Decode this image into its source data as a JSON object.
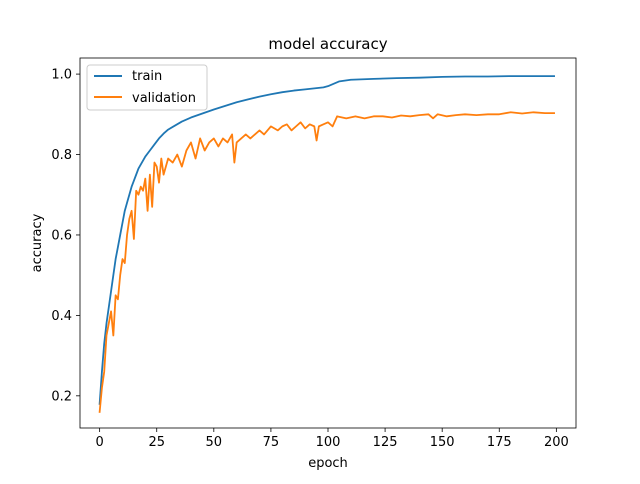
{
  "chart_data": {
    "type": "line",
    "title": "model accuracy",
    "xlabel": "epoch",
    "ylabel": "accuracy",
    "xlim": [
      -8.6,
      208.6
    ],
    "ylim": [
      0.12,
      1.04
    ],
    "xticks": [
      0,
      25,
      50,
      75,
      100,
      125,
      150,
      175,
      200
    ],
    "yticks": [
      0.2,
      0.4,
      0.6,
      0.8,
      1.0
    ],
    "xtick_labels": [
      "0",
      "25",
      "50",
      "75",
      "100",
      "125",
      "150",
      "175",
      "200"
    ],
    "ytick_labels": [
      "0.2",
      "0.4",
      "0.6",
      "0.8",
      "1.0"
    ],
    "legend_position": "upper-left",
    "series": [
      {
        "name": "train",
        "color": "#1f77b4",
        "x": [
          0,
          1,
          2,
          3,
          4,
          5,
          6,
          7,
          8,
          9,
          10,
          11,
          12,
          13,
          14,
          15,
          16,
          17,
          18,
          19,
          20,
          22,
          24,
          26,
          28,
          30,
          33,
          36,
          40,
          45,
          50,
          55,
          60,
          65,
          70,
          75,
          80,
          85,
          90,
          95,
          98,
          100,
          105,
          110,
          120,
          130,
          140,
          150,
          160,
          170,
          180,
          190,
          199
        ],
        "values": [
          0.18,
          0.26,
          0.33,
          0.38,
          0.42,
          0.46,
          0.5,
          0.54,
          0.57,
          0.6,
          0.63,
          0.66,
          0.68,
          0.7,
          0.72,
          0.735,
          0.75,
          0.765,
          0.775,
          0.785,
          0.795,
          0.81,
          0.825,
          0.84,
          0.852,
          0.862,
          0.872,
          0.882,
          0.892,
          0.902,
          0.912,
          0.921,
          0.93,
          0.937,
          0.944,
          0.95,
          0.955,
          0.959,
          0.962,
          0.965,
          0.967,
          0.97,
          0.982,
          0.986,
          0.988,
          0.99,
          0.991,
          0.993,
          0.994,
          0.994,
          0.995,
          0.995,
          0.995
        ]
      },
      {
        "name": "validation",
        "color": "#ff7f0e",
        "x": [
          0,
          1,
          2,
          3,
          4,
          5,
          6,
          7,
          8,
          9,
          10,
          11,
          12,
          13,
          14,
          15,
          16,
          17,
          18,
          19,
          20,
          21,
          22,
          23,
          24,
          25,
          26,
          27,
          28,
          30,
          32,
          34,
          36,
          38,
          40,
          42,
          44,
          46,
          48,
          50,
          52,
          54,
          56,
          58,
          59,
          60,
          62,
          64,
          66,
          68,
          70,
          72,
          75,
          78,
          80,
          82,
          84,
          86,
          88,
          90,
          92,
          94,
          95,
          96,
          98,
          100,
          102,
          104,
          108,
          112,
          116,
          120,
          124,
          128,
          132,
          136,
          140,
          144,
          146,
          148,
          152,
          156,
          160,
          165,
          170,
          175,
          180,
          185,
          190,
          195,
          199
        ],
        "values": [
          0.16,
          0.22,
          0.26,
          0.35,
          0.38,
          0.41,
          0.35,
          0.45,
          0.44,
          0.5,
          0.54,
          0.53,
          0.6,
          0.64,
          0.66,
          0.59,
          0.71,
          0.7,
          0.72,
          0.71,
          0.74,
          0.66,
          0.75,
          0.67,
          0.78,
          0.77,
          0.73,
          0.79,
          0.75,
          0.79,
          0.78,
          0.8,
          0.77,
          0.81,
          0.83,
          0.79,
          0.84,
          0.81,
          0.83,
          0.84,
          0.82,
          0.84,
          0.83,
          0.85,
          0.78,
          0.83,
          0.84,
          0.85,
          0.84,
          0.85,
          0.86,
          0.85,
          0.87,
          0.86,
          0.87,
          0.875,
          0.86,
          0.87,
          0.88,
          0.865,
          0.875,
          0.87,
          0.835,
          0.87,
          0.875,
          0.88,
          0.87,
          0.895,
          0.89,
          0.895,
          0.89,
          0.895,
          0.895,
          0.892,
          0.897,
          0.895,
          0.898,
          0.9,
          0.89,
          0.9,
          0.895,
          0.898,
          0.9,
          0.898,
          0.9,
          0.9,
          0.905,
          0.902,
          0.905,
          0.903,
          0.903
        ]
      }
    ]
  }
}
